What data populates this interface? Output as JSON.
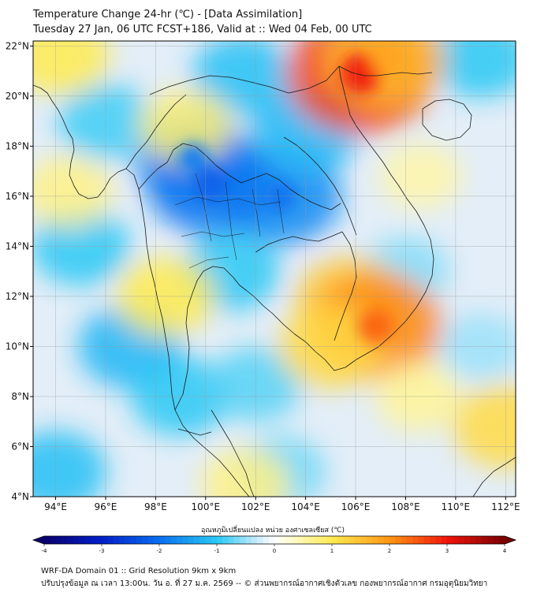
{
  "header": {
    "title_line1": "Temperature Change 24-hr (℃) - [Data Assimilation]",
    "title_line2": "Tuesday 27 Jan, 06 UTC FCST+186, Valid at :: Wed 04 Feb, 00 UTC"
  },
  "map": {
    "lon_ticks": [
      "94°E",
      "96°E",
      "98°E",
      "100°E",
      "102°E",
      "104°E",
      "106°E",
      "108°E",
      "110°E",
      "112°E"
    ],
    "lat_ticks": [
      "22°N",
      "20°N",
      "18°N",
      "16°N",
      "14°N",
      "12°N",
      "10°N",
      "8°N",
      "6°N",
      "4°N"
    ],
    "lon_values": [
      94,
      96,
      98,
      100,
      102,
      104,
      106,
      108,
      110,
      112
    ],
    "lat_values": [
      22,
      20,
      18,
      16,
      14,
      12,
      10,
      8,
      6,
      4
    ],
    "lon_range": [
      93.1,
      112.4
    ],
    "lat_range": [
      4.0,
      22.2
    ],
    "grid": true,
    "field_blobs": [
      {
        "lon": 99.5,
        "lat": 17.5,
        "value": -1.6
      },
      {
        "lon": 103.0,
        "lat": 16.0,
        "value": -1.7
      },
      {
        "lon": 100.2,
        "lat": 16.5,
        "value": -1.9
      },
      {
        "lon": 101.5,
        "lat": 20.8,
        "value": -1.1
      },
      {
        "lon": 104.0,
        "lat": 18.5,
        "value": -1.2
      },
      {
        "lon": 101.0,
        "lat": 13.0,
        "value": -1.0
      },
      {
        "lon": 97.0,
        "lat": 10.0,
        "value": -1.2
      },
      {
        "lon": 95.0,
        "lat": 14.0,
        "value": -1.0
      },
      {
        "lon": 99.0,
        "lat": 8.0,
        "value": -1.0
      },
      {
        "lon": 102.0,
        "lat": 8.5,
        "value": -0.8
      },
      {
        "lon": 96.0,
        "lat": 19.0,
        "value": -0.9
      },
      {
        "lon": 94.0,
        "lat": 5.0,
        "value": -1.1
      },
      {
        "lon": 103.0,
        "lat": 5.0,
        "value": -0.7
      },
      {
        "lon": 111.0,
        "lat": 21.5,
        "value": -1.0
      },
      {
        "lon": 108.0,
        "lat": 13.0,
        "value": -0.6
      },
      {
        "lon": 111.0,
        "lat": 10.0,
        "value": -0.5
      },
      {
        "lon": 105.8,
        "lat": 11.8,
        "value": 1.4
      },
      {
        "lon": 106.8,
        "lat": 10.8,
        "value": 2.1
      },
      {
        "lon": 105.0,
        "lat": 10.0,
        "value": 1.2
      },
      {
        "lon": 106.2,
        "lat": 20.9,
        "value": 2.6
      },
      {
        "lon": 107.2,
        "lat": 21.5,
        "value": 1.6
      },
      {
        "lon": 94.2,
        "lat": 21.6,
        "value": 1.0
      },
      {
        "lon": 98.4,
        "lat": 12.0,
        "value": 1.0
      },
      {
        "lon": 112.0,
        "lat": 6.8,
        "value": 1.2
      },
      {
        "lon": 99.2,
        "lat": 18.8,
        "value": 0.8
      },
      {
        "lon": 94.5,
        "lat": 16.2,
        "value": 0.7
      },
      {
        "lon": 108.5,
        "lat": 8.0,
        "value": 0.6
      },
      {
        "lon": 101.6,
        "lat": 4.5,
        "value": 0.7
      },
      {
        "lon": 108.6,
        "lat": 16.8,
        "value": 0.5
      }
    ]
  },
  "colorbar": {
    "title": "อุณหภูมิเปลี่ยนแปลง หน่วย องศาเซลเซียส (℃)",
    "min": -4,
    "max": 4,
    "tick_labels": [
      "-4",
      "-3",
      "-2",
      "-1",
      "0",
      "1",
      "2",
      "3",
      "4"
    ],
    "tick_values": [
      -4,
      -3,
      -2,
      -1,
      0,
      1,
      2,
      3,
      4
    ]
  },
  "footer": {
    "line1": "WRF-DA Domain 01 :: Grid Resolution 9km x 9km",
    "line2": "ปรับปรุงข้อมูล ณ เวลา 13:00น. วัน อ. ที่ 27 ม.ค. 2569 -- © ส่วนพยากรณ์อากาศเชิงตัวเลข กองพยากรณ์อากาศ กรมอุตุนิยมวิทยา"
  }
}
